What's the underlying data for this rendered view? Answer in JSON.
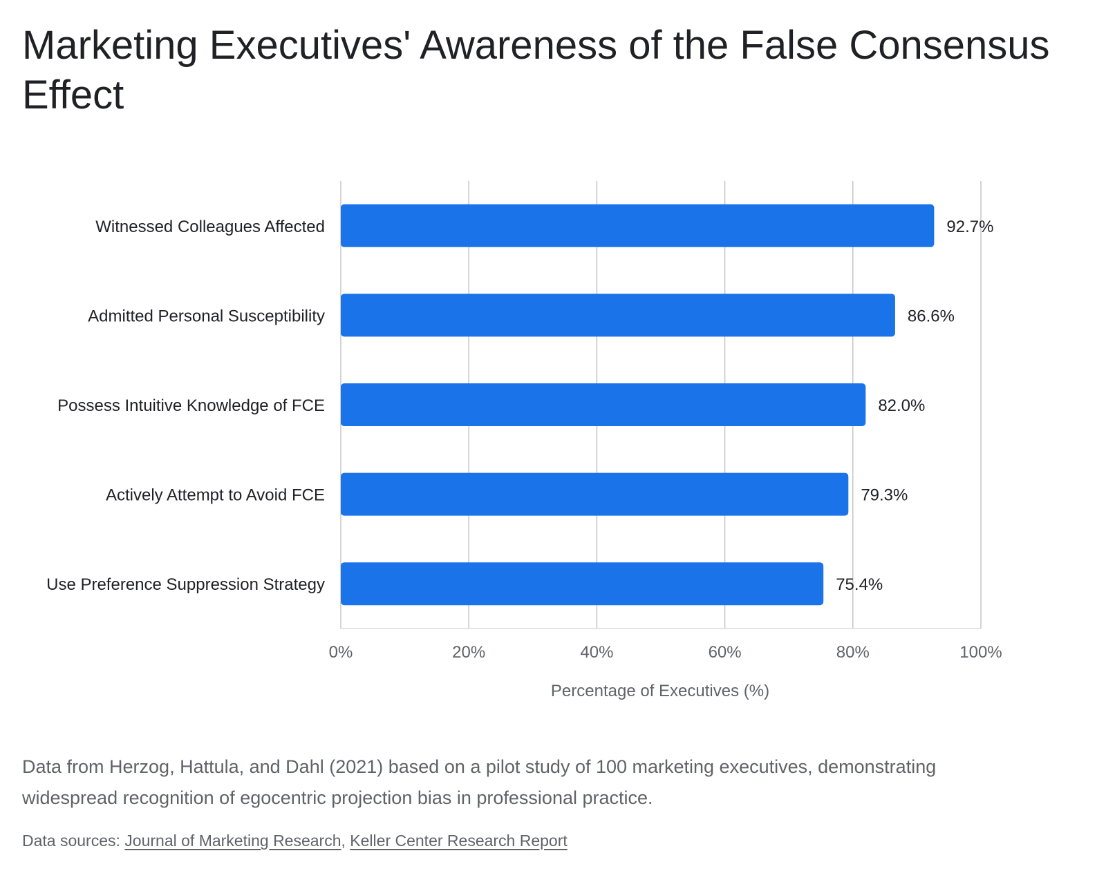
{
  "chart_data": {
    "type": "bar",
    "orientation": "horizontal",
    "title": "Marketing Executives' Awareness of the False Consensus Effect",
    "categories": [
      "Witnessed Colleagues Affected",
      "Admitted Personal Susceptibility",
      "Possess Intuitive Knowledge of FCE",
      "Actively Attempt to Avoid FCE",
      "Use Preference Suppression Strategy"
    ],
    "values": [
      92.7,
      86.6,
      82.0,
      79.3,
      75.4
    ],
    "value_labels": [
      "92.7%",
      "86.6%",
      "82.0%",
      "79.3%",
      "75.4%"
    ],
    "xlabel": "Percentage of Executives (%)",
    "ylabel": "",
    "xlim": [
      0,
      100
    ],
    "x_ticks": [
      0,
      20,
      40,
      60,
      80,
      100
    ],
    "x_tick_labels": [
      "0%",
      "20%",
      "40%",
      "60%",
      "80%",
      "100%"
    ],
    "grid": "vertical",
    "legend": "none",
    "bar_color": "#1a73e8"
  },
  "description": "Data from Herzog, Hattula, and Dahl (2021) based on a pilot study of 100 marketing executives, demonstrating widespread recognition of egocentric projection bias in professional practice.",
  "sources": {
    "prefix": "Data sources:",
    "separator": ",",
    "links": [
      {
        "label": "Journal of Marketing Research"
      },
      {
        "label": "Keller Center Research Report"
      }
    ]
  },
  "colors": {
    "text": "#202124",
    "muted": "#5f6368",
    "grid": "#c6c6c6",
    "bar": "#1a73e8"
  }
}
